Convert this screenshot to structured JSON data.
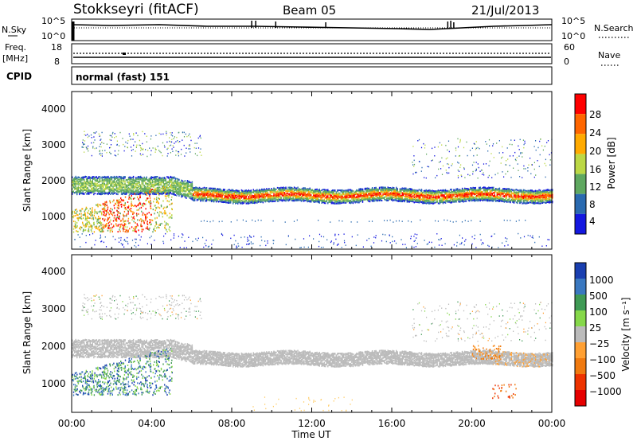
{
  "header": {
    "station": "Stokkseyri (fitACF)",
    "beam": "Beam 05",
    "date": "21/Jul/2013"
  },
  "noise_panel": {
    "left_label": "N.Sky",
    "left_ticks": [
      "10^5",
      "10^0"
    ],
    "right_ticks": [
      "10^5",
      "10^0"
    ],
    "right_label": "N.Search"
  },
  "freq_panel": {
    "left_label": "Freq.",
    "left_unit": "[MHz]",
    "left_ticks": [
      "18",
      "8"
    ],
    "right_ticks": [
      "60",
      "0"
    ],
    "right_label": "Nave"
  },
  "cpid_panel": {
    "label": "CPID",
    "value": "normal (fast) 151"
  },
  "chart_data": [
    {
      "type": "heatmap",
      "name": "power",
      "ylabel": "Slant Range [km]",
      "ylim": [
        200,
        4600
      ],
      "yticks": [
        "1000",
        "2000",
        "3000",
        "4000"
      ],
      "xlim": [
        0,
        24
      ],
      "colorbar_label": "Power [dB]",
      "colorbar_ticks": [
        "28",
        "24",
        "20",
        "16",
        "12",
        "8",
        "4"
      ],
      "colorbar_colors": [
        "#ff0000",
        "#ff6600",
        "#ffaa00",
        "#bcd845",
        "#5fa860",
        "#2a6ab0",
        "#1418e0"
      ]
    },
    {
      "type": "heatmap",
      "name": "velocity",
      "ylabel": "Slant Range [km]",
      "ylim": [
        200,
        4600
      ],
      "yticks": [
        "1000",
        "2000",
        "3000",
        "4000"
      ],
      "xlim": [
        0,
        24
      ],
      "xlabel": "Time UT",
      "xticks": [
        "00:00",
        "04:00",
        "08:00",
        "12:00",
        "16:00",
        "20:00",
        "00:00"
      ],
      "colorbar_label": "Velocity [m s⁻¹]",
      "colorbar_ticks": [
        "1000",
        "500",
        "100",
        "25",
        "−25",
        "−100",
        "−500",
        "−1000"
      ],
      "colorbar_colors": [
        "#1a3fb0",
        "#3a78c0",
        "#3f9a55",
        "#86d84a",
        "#bbbbbb",
        "#ffa033",
        "#f07a10",
        "#ee3300",
        "#e60000"
      ]
    }
  ]
}
